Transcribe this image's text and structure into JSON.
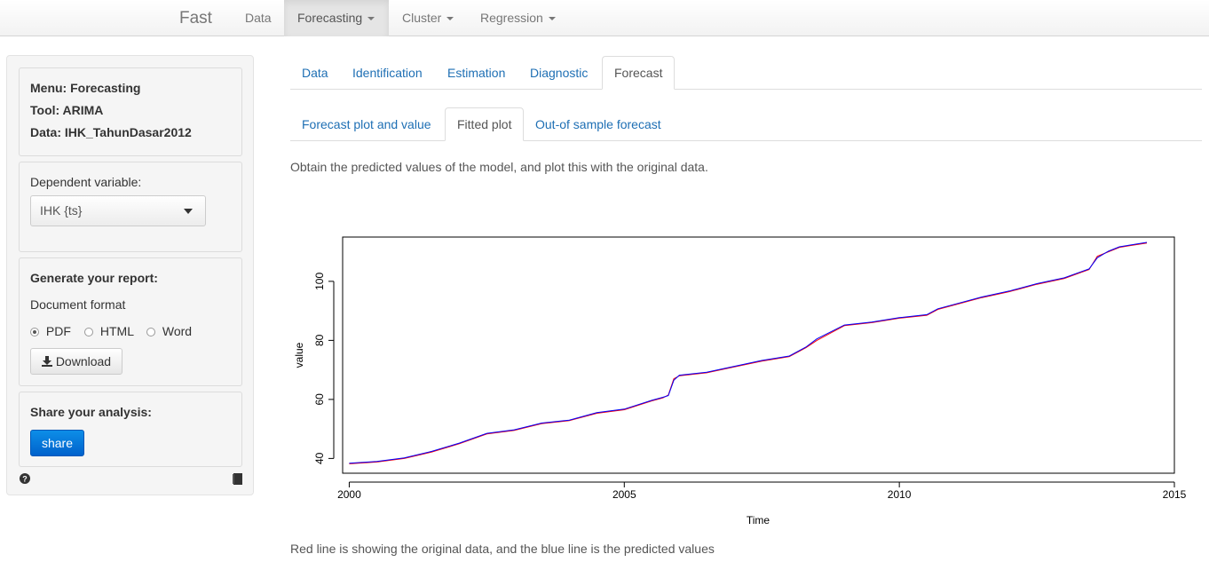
{
  "navbar": {
    "brand": "Fast",
    "items": [
      {
        "label": "Data",
        "dropdown": false,
        "active": false
      },
      {
        "label": "Forecasting",
        "dropdown": true,
        "active": true
      },
      {
        "label": "Cluster",
        "dropdown": true,
        "active": false
      },
      {
        "label": "Regression",
        "dropdown": true,
        "active": false
      }
    ]
  },
  "sidebar": {
    "info": {
      "menu": "Menu: Forecasting",
      "tool": "Tool: ARIMA",
      "data": "Data: IHK_TahunDasar2012"
    },
    "dependent": {
      "label": "Dependent variable:",
      "selected": "IHK {ts}"
    },
    "report": {
      "title": "Generate your report:",
      "format_label": "Document format",
      "options": [
        "PDF",
        "HTML",
        "Word"
      ],
      "selected": "PDF",
      "download_label": "Download"
    },
    "share": {
      "title": "Share your analysis:",
      "button_label": "share"
    },
    "footer_icons": [
      "help-icon",
      "book-icon"
    ]
  },
  "tabs_main": [
    "Data",
    "Identification",
    "Estimation",
    "Diagnostic",
    "Forecast"
  ],
  "tabs_main_active": "Forecast",
  "tabs_sub": [
    "Forecast plot and value",
    "Fitted plot",
    "Out-of sample forecast"
  ],
  "tabs_sub_active": "Fitted plot",
  "description_top": "Obtain the predicted values of the model, and plot this with the original data.",
  "description_bottom": "Red line is showing the original data, and the blue line is the predicted values",
  "chart_data": {
    "type": "line",
    "xlabel": "Time",
    "ylabel": "value",
    "xlim": [
      1999.88,
      2015.0
    ],
    "ylim": [
      35.0,
      115.0
    ],
    "xticks": [
      2000,
      2005,
      2010,
      2015
    ],
    "yticks": [
      40,
      60,
      80,
      100
    ],
    "grid": false,
    "series": [
      {
        "color": "#ff0000",
        "x": [
          2000.0,
          2000.5,
          2001.0,
          2001.5,
          2002.0,
          2002.5,
          2003.0,
          2003.5,
          2004.0,
          2004.5,
          2005.0,
          2005.5,
          2005.7,
          2005.8,
          2005.9,
          2006.0,
          2006.5,
          2007.0,
          2007.5,
          2008.0,
          2008.3,
          2008.5,
          2009.0,
          2009.5,
          2010.0,
          2010.5,
          2010.7,
          2011.0,
          2011.5,
          2012.0,
          2012.5,
          2013.0,
          2013.3,
          2013.45,
          2013.6,
          2013.8,
          2014.0,
          2014.5
        ],
        "values": [
          38.2,
          38.8,
          40.0,
          42.2,
          45.0,
          48.3,
          49.5,
          51.8,
          52.8,
          55.3,
          56.5,
          59.5,
          60.5,
          61.5,
          67.0,
          68.0,
          69.0,
          71.0,
          73.0,
          74.5,
          77.5,
          80.0,
          85.0,
          86.0,
          87.5,
          88.5,
          90.5,
          92.0,
          94.5,
          96.5,
          99.0,
          101.0,
          103.0,
          104.0,
          108.5,
          110.0,
          111.5,
          113.0
        ]
      },
      {
        "color": "#0000ff",
        "x": [
          2000.0,
          2000.5,
          2001.0,
          2001.5,
          2002.0,
          2002.5,
          2003.0,
          2003.5,
          2004.0,
          2004.5,
          2005.0,
          2005.5,
          2005.7,
          2005.8,
          2005.9,
          2006.0,
          2006.5,
          2007.0,
          2007.5,
          2008.0,
          2008.3,
          2008.5,
          2009.0,
          2009.5,
          2010.0,
          2010.5,
          2010.7,
          2011.0,
          2011.5,
          2012.0,
          2012.5,
          2013.0,
          2013.3,
          2013.45,
          2013.6,
          2013.8,
          2014.0,
          2014.5
        ],
        "values": [
          38.4,
          39.0,
          40.2,
          42.4,
          45.2,
          48.5,
          49.7,
          52.0,
          53.0,
          55.5,
          56.7,
          59.7,
          60.7,
          61.3,
          66.5,
          68.2,
          69.2,
          71.2,
          73.2,
          74.7,
          77.7,
          80.5,
          85.2,
          86.2,
          87.7,
          88.7,
          90.7,
          92.2,
          94.7,
          96.7,
          99.2,
          101.2,
          103.2,
          104.2,
          108.0,
          110.2,
          111.7,
          113.2
        ]
      }
    ]
  }
}
